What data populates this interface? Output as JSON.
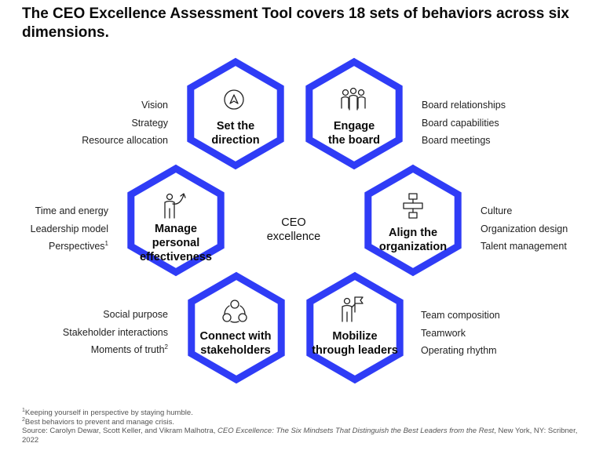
{
  "title": "The CEO Excellence Assessment Tool covers 18 sets of behaviors across six dimensions.",
  "center": {
    "line1": "CEO",
    "line2": "excellence"
  },
  "accent_color": "#2f3cf6",
  "dimensions": [
    {
      "icon": "compass-arrow-icon",
      "line1": "Set the",
      "line2": "direction",
      "behaviors": [
        "Vision",
        "Strategy",
        "Resource allocation"
      ]
    },
    {
      "icon": "group-of-people-icon",
      "line1": "Engage",
      "line2": "the board",
      "behaviors": [
        "Board relationships",
        "Board capabilities",
        "Board meetings"
      ]
    },
    {
      "icon": "org-chart-icon",
      "line1": "Align the",
      "line2": "organization",
      "behaviors": [
        "Culture",
        "Organization design",
        "Talent management"
      ]
    },
    {
      "icon": "person-with-flag-icon",
      "line1": "Mobilize",
      "line2": "through leaders",
      "behaviors": [
        "Team composition",
        "Teamwork",
        "Operating rhythm"
      ]
    },
    {
      "icon": "connected-people-icon",
      "line1": "Connect with",
      "line2": "stakeholders",
      "behaviors": [
        "Social purpose",
        "Stakeholder interactions",
        "Moments of truth"
      ],
      "sup_last": "2"
    },
    {
      "icon": "person-growth-arrow-icon",
      "line1": "Manage",
      "line2": "personal",
      "line3": "effectiveness",
      "behaviors": [
        "Time and energy",
        "Leadership model",
        "Perspectives"
      ],
      "sup_last": "1"
    }
  ],
  "footnotes": {
    "note1_mark": "1",
    "note1": "Keeping yourself in perspective by staying humble.",
    "note2_mark": "2",
    "note2": "Best behaviors to prevent and manage crisis.",
    "source_prefix": "Source: Carolyn Dewar, Scott Keller, and Vikram Malhotra, ",
    "source_book": "CEO Excellence: The Six Mindsets That Distinguish the Best Leaders from the Rest",
    "source_suffix": ", New York, NY: Scribner, 2022"
  }
}
